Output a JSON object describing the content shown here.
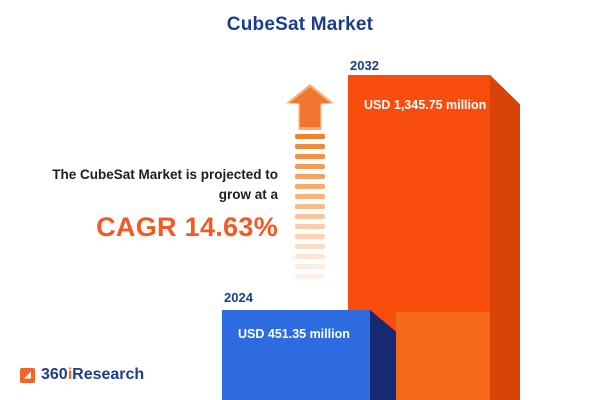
{
  "title": "CubeSat Market",
  "annotation": {
    "line1": "The CubeSat Market is projected to",
    "line2": "grow at a",
    "cagr": "CAGR 14.63%"
  },
  "bars": {
    "b2024": {
      "year": "2024",
      "value_label": "USD 451.35 million"
    },
    "b2032": {
      "year": "2032",
      "value_label": "USD 1,345.75 million"
    }
  },
  "logo": {
    "part1": "360",
    "part2": "i",
    "part3": "Research"
  },
  "colors": {
    "navy": "#1b3e8c",
    "accent_orange": "#f15a22",
    "bar_orange_front": "#f94d0d",
    "bar_orange_side": "#d84307",
    "bar_blue_front": "#2d6ce0",
    "bar_blue_side": "#152a70"
  },
  "chart_data": {
    "type": "bar",
    "title": "CubeSat Market",
    "categories": [
      "2024",
      "2032"
    ],
    "values": [
      451.35,
      1345.75
    ],
    "unit": "USD million",
    "value_labels": [
      "USD 451.35 million",
      "USD 1,345.75 million"
    ],
    "series_colors": [
      "#2d6ce0",
      "#f94d0d"
    ],
    "annotations": [
      "The CubeSat Market is projected to grow at a CAGR 14.63%"
    ],
    "cagr_percent": 14.63,
    "ylim": [
      0,
      1400
    ],
    "grid": false,
    "legend": false
  }
}
